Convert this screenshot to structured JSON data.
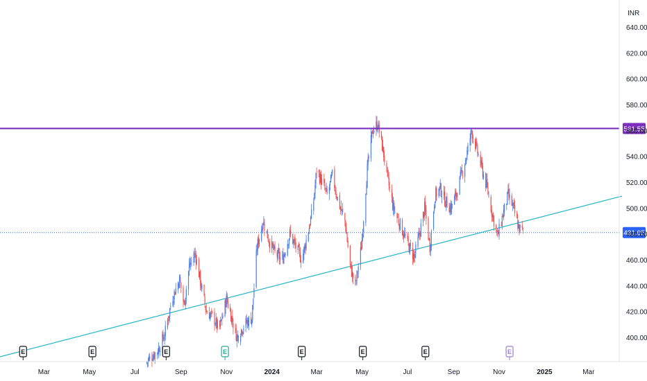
{
  "chart_data": {
    "type": "candlestick",
    "currency": "INR",
    "ylim": [
      380,
      650
    ],
    "xlim": [
      "2023-01-01",
      "2025-03-31"
    ],
    "y_ticks": [
      "400.00",
      "420.00",
      "440.00",
      "460.00",
      "480.00",
      "500.00",
      "520.00",
      "540.00",
      "560.00",
      "580.00",
      "600.00",
      "620.00",
      "640.00"
    ],
    "x_ticks": [
      {
        "label": "Mar",
        "date": "2023-03-01",
        "bold": false
      },
      {
        "label": "May",
        "date": "2023-05-01",
        "bold": false
      },
      {
        "label": "Jul",
        "date": "2023-07-01",
        "bold": false
      },
      {
        "label": "Sep",
        "date": "2023-09-01",
        "bold": false
      },
      {
        "label": "Nov",
        "date": "2023-11-01",
        "bold": false
      },
      {
        "label": "2024",
        "date": "2024-01-01",
        "bold": true
      },
      {
        "label": "Mar",
        "date": "2024-03-01",
        "bold": false
      },
      {
        "label": "May",
        "date": "2024-05-01",
        "bold": false
      },
      {
        "label": "Jul",
        "date": "2024-07-01",
        "bold": false
      },
      {
        "label": "Sep",
        "date": "2024-09-01",
        "bold": false
      },
      {
        "label": "Nov",
        "date": "2024-11-01",
        "bold": false
      },
      {
        "label": "2025",
        "date": "2025-01-01",
        "bold": true
      },
      {
        "label": "Mar",
        "date": "2025-03-01",
        "bold": false
      }
    ],
    "resistance_line": {
      "price": 561.55,
      "label": "561.55",
      "color": "#7b2fbe"
    },
    "last_price": {
      "price": 481.05,
      "label": "481.05",
      "color": "#2962ff"
    },
    "trendline": {
      "start": {
        "date": "2023-01-01",
        "price": 385
      },
      "end": {
        "date": "2025-03-31",
        "price": 507
      },
      "color": "#26b5c8"
    },
    "earnings_markers": [
      {
        "label": "E",
        "date": "2023-02-01",
        "color": "#131722"
      },
      {
        "label": "E",
        "date": "2023-05-05",
        "color": "#131722"
      },
      {
        "label": "E",
        "date": "2023-08-12",
        "color": "#131722"
      },
      {
        "label": "E",
        "date": "2023-10-30",
        "color": "#26a69a"
      },
      {
        "label": "E",
        "date": "2024-02-10",
        "color": "#131722"
      },
      {
        "label": "E",
        "date": "2024-05-02",
        "color": "#131722"
      },
      {
        "label": "E",
        "date": "2024-07-25",
        "color": "#131722"
      },
      {
        "label": "E",
        "date": "2024-11-15",
        "color": "#9c7fd1"
      }
    ],
    "up_color": "#4c7ee6",
    "down_color": "#ef5350",
    "price_path": [
      [
        "2023-07-15",
        380
      ],
      [
        "2023-08-01",
        390
      ],
      [
        "2023-08-10",
        402
      ],
      [
        "2023-08-20",
        430
      ],
      [
        "2023-08-30",
        445
      ],
      [
        "2023-09-05",
        425
      ],
      [
        "2023-09-12",
        455
      ],
      [
        "2023-09-20",
        465
      ],
      [
        "2023-09-28",
        440
      ],
      [
        "2023-10-05",
        420
      ],
      [
        "2023-10-15",
        415
      ],
      [
        "2023-10-22",
        405
      ],
      [
        "2023-11-01",
        430
      ],
      [
        "2023-11-08",
        415
      ],
      [
        "2023-11-15",
        400
      ],
      [
        "2023-11-25",
        410
      ],
      [
        "2023-12-05",
        415
      ],
      [
        "2023-12-12",
        470
      ],
      [
        "2023-12-20",
        490
      ],
      [
        "2023-12-28",
        475
      ],
      [
        "2024-01-05",
        465
      ],
      [
        "2024-01-15",
        460
      ],
      [
        "2024-01-25",
        480
      ],
      [
        "2024-02-02",
        470
      ],
      [
        "2024-02-10",
        460
      ],
      [
        "2024-02-18",
        480
      ],
      [
        "2024-02-25",
        500
      ],
      [
        "2024-03-01",
        530
      ],
      [
        "2024-03-08",
        520
      ],
      [
        "2024-03-15",
        510
      ],
      [
        "2024-03-22",
        525
      ],
      [
        "2024-03-30",
        505
      ],
      [
        "2024-04-08",
        490
      ],
      [
        "2024-04-15",
        455
      ],
      [
        "2024-04-22",
        440
      ],
      [
        "2024-04-30",
        470
      ],
      [
        "2024-05-08",
        530
      ],
      [
        "2024-05-15",
        560
      ],
      [
        "2024-05-22",
        565
      ],
      [
        "2024-05-29",
        545
      ],
      [
        "2024-06-05",
        520
      ],
      [
        "2024-06-12",
        500
      ],
      [
        "2024-06-19",
        490
      ],
      [
        "2024-06-26",
        480
      ],
      [
        "2024-07-03",
        470
      ],
      [
        "2024-07-10",
        462
      ],
      [
        "2024-07-17",
        480
      ],
      [
        "2024-07-24",
        500
      ],
      [
        "2024-07-31",
        470
      ],
      [
        "2024-08-07",
        510
      ],
      [
        "2024-08-14",
        515
      ],
      [
        "2024-08-21",
        505
      ],
      [
        "2024-08-28",
        500
      ],
      [
        "2024-09-04",
        510
      ],
      [
        "2024-09-11",
        525
      ],
      [
        "2024-09-18",
        540
      ],
      [
        "2024-09-25",
        560
      ],
      [
        "2024-10-02",
        545
      ],
      [
        "2024-10-09",
        530
      ],
      [
        "2024-10-16",
        515
      ],
      [
        "2024-10-23",
        495
      ],
      [
        "2024-10-30",
        478
      ],
      [
        "2024-11-06",
        495
      ],
      [
        "2024-11-13",
        510
      ],
      [
        "2024-11-20",
        500
      ],
      [
        "2024-11-27",
        485
      ],
      [
        "2024-12-04",
        481.05
      ]
    ]
  }
}
